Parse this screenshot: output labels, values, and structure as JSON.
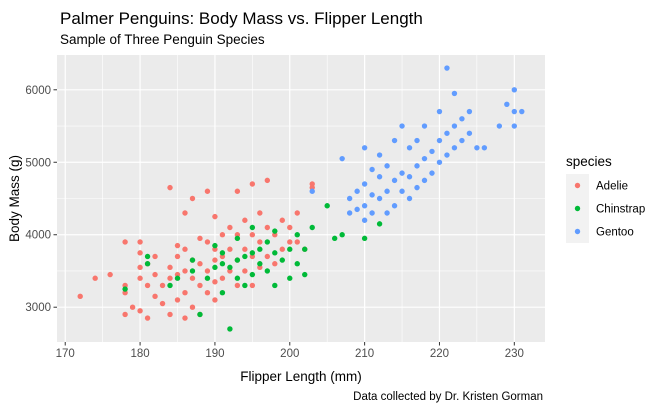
{
  "chart_data": {
    "type": "scatter",
    "title": "Palmer Penguins: Body Mass vs. Flipper Length",
    "subtitle": "Sample of Three Penguin Species",
    "xlabel": "Flipper Length (mm)",
    "ylabel": "Body Mass (g)",
    "caption": "Data collected by Dr. Kristen Gorman",
    "xlim": [
      168.9,
      234.1
    ],
    "ylim": [
      2520,
      6480
    ],
    "x_ticks": [
      170,
      180,
      190,
      200,
      210,
      220,
      230
    ],
    "y_ticks": [
      3000,
      4000,
      5000,
      6000
    ],
    "grid": true,
    "legend": {
      "title": "species",
      "position": "right"
    },
    "series": [
      {
        "name": "Adelie",
        "color": "#F8766D",
        "points": [
          [
            172,
            3150
          ],
          [
            174,
            3400
          ],
          [
            176,
            3450
          ],
          [
            178,
            2900
          ],
          [
            178,
            3200
          ],
          [
            178,
            3300
          ],
          [
            178,
            3900
          ],
          [
            179,
            3000
          ],
          [
            180,
            2950
          ],
          [
            180,
            3550
          ],
          [
            180,
            3750
          ],
          [
            180,
            3900
          ],
          [
            180,
            3400
          ],
          [
            181,
            2850
          ],
          [
            181,
            3300
          ],
          [
            181,
            3600
          ],
          [
            182,
            3150
          ],
          [
            182,
            3700
          ],
          [
            182,
            3450
          ],
          [
            183,
            3050
          ],
          [
            183,
            3300
          ],
          [
            184,
            2900
          ],
          [
            184,
            3400
          ],
          [
            184,
            3550
          ],
          [
            184,
            4650
          ],
          [
            185,
            3100
          ],
          [
            185,
            3700
          ],
          [
            185,
            3850
          ],
          [
            185,
            3450
          ],
          [
            186,
            2850
          ],
          [
            186,
            3200
          ],
          [
            186,
            3500
          ],
          [
            186,
            3800
          ],
          [
            186,
            4300
          ],
          [
            187,
            3000
          ],
          [
            187,
            3400
          ],
          [
            187,
            3650
          ],
          [
            187,
            4500
          ],
          [
            188,
            2900
          ],
          [
            188,
            3300
          ],
          [
            188,
            3600
          ],
          [
            188,
            3950
          ],
          [
            189,
            3200
          ],
          [
            189,
            3500
          ],
          [
            189,
            3900
          ],
          [
            189,
            4600
          ],
          [
            190,
            3100
          ],
          [
            190,
            3350
          ],
          [
            190,
            3650
          ],
          [
            190,
            3800
          ],
          [
            190,
            4250
          ],
          [
            191,
            3400
          ],
          [
            191,
            3700
          ],
          [
            191,
            4000
          ],
          [
            192,
            3500
          ],
          [
            192,
            3800
          ],
          [
            192,
            4100
          ],
          [
            193,
            3300
          ],
          [
            193,
            3650
          ],
          [
            193,
            4000
          ],
          [
            193,
            4600
          ],
          [
            194,
            3500
          ],
          [
            194,
            3800
          ],
          [
            194,
            4200
          ],
          [
            195,
            3300
          ],
          [
            195,
            3700
          ],
          [
            195,
            4000
          ],
          [
            195,
            4700
          ],
          [
            196,
            3550
          ],
          [
            196,
            3900
          ],
          [
            196,
            4300
          ],
          [
            197,
            3700
          ],
          [
            197,
            4100
          ],
          [
            197,
            4750
          ],
          [
            198,
            3600
          ],
          [
            198,
            4000
          ],
          [
            199,
            3800
          ],
          [
            199,
            4200
          ],
          [
            200,
            3900
          ],
          [
            200,
            4100
          ],
          [
            201,
            3900
          ],
          [
            201,
            4300
          ],
          [
            202,
            3800
          ],
          [
            203,
            4650
          ],
          [
            203,
            4700
          ]
        ]
      },
      {
        "name": "Chinstrap",
        "color": "#00BA38",
        "points": [
          [
            178,
            3250
          ],
          [
            181,
            3600
          ],
          [
            181,
            3700
          ],
          [
            184,
            3300
          ],
          [
            185,
            3400
          ],
          [
            187,
            3500
          ],
          [
            187,
            3650
          ],
          [
            188,
            2900
          ],
          [
            189,
            3400
          ],
          [
            190,
            3550
          ],
          [
            190,
            3850
          ],
          [
            191,
            3200
          ],
          [
            191,
            3600
          ],
          [
            191,
            3750
          ],
          [
            192,
            2700
          ],
          [
            192,
            3550
          ],
          [
            193,
            3400
          ],
          [
            193,
            3650
          ],
          [
            193,
            3950
          ],
          [
            194,
            3300
          ],
          [
            194,
            3700
          ],
          [
            195,
            3450
          ],
          [
            195,
            3750
          ],
          [
            195,
            4100
          ],
          [
            196,
            3600
          ],
          [
            196,
            3800
          ],
          [
            197,
            3500
          ],
          [
            197,
            3900
          ],
          [
            198,
            3300
          ],
          [
            198,
            3750
          ],
          [
            198,
            4050
          ],
          [
            199,
            3650
          ],
          [
            200,
            3400
          ],
          [
            200,
            3800
          ],
          [
            201,
            3600
          ],
          [
            201,
            4000
          ],
          [
            202,
            3450
          ],
          [
            202,
            3800
          ],
          [
            203,
            4100
          ],
          [
            205,
            4400
          ],
          [
            206,
            3950
          ],
          [
            207,
            4000
          ],
          [
            210,
            3950
          ],
          [
            212,
            4150
          ]
        ]
      },
      {
        "name": "Gentoo",
        "color": "#619CFF",
        "points": [
          [
            203,
            4600
          ],
          [
            207,
            5050
          ],
          [
            208,
            4300
          ],
          [
            208,
            4500
          ],
          [
            209,
            4350
          ],
          [
            209,
            4600
          ],
          [
            210,
            4200
          ],
          [
            210,
            4400
          ],
          [
            210,
            4700
          ],
          [
            210,
            5200
          ],
          [
            211,
            4300
          ],
          [
            211,
            4550
          ],
          [
            211,
            4900
          ],
          [
            212,
            4500
          ],
          [
            212,
            4800
          ],
          [
            212,
            5100
          ],
          [
            213,
            4300
          ],
          [
            213,
            4600
          ],
          [
            213,
            4950
          ],
          [
            214,
            4400
          ],
          [
            214,
            4750
          ],
          [
            214,
            5300
          ],
          [
            215,
            4600
          ],
          [
            215,
            4850
          ],
          [
            215,
            5500
          ],
          [
            216,
            4500
          ],
          [
            216,
            4800
          ],
          [
            216,
            5200
          ],
          [
            217,
            4650
          ],
          [
            217,
            4950
          ],
          [
            217,
            5300
          ],
          [
            218,
            4750
          ],
          [
            218,
            5050
          ],
          [
            218,
            5500
          ],
          [
            219,
            4850
          ],
          [
            219,
            5150
          ],
          [
            220,
            5000
          ],
          [
            220,
            5300
          ],
          [
            220,
            5700
          ],
          [
            221,
            5100
          ],
          [
            221,
            5400
          ],
          [
            221,
            6300
          ],
          [
            222,
            5200
          ],
          [
            222,
            5500
          ],
          [
            222,
            5950
          ],
          [
            223,
            5300
          ],
          [
            223,
            5600
          ],
          [
            224,
            5400
          ],
          [
            224,
            5700
          ],
          [
            225,
            5200
          ],
          [
            226,
            5200
          ],
          [
            228,
            5500
          ],
          [
            229,
            5800
          ],
          [
            230,
            5700
          ],
          [
            230,
            6000
          ],
          [
            230,
            5500
          ],
          [
            231,
            5700
          ]
        ]
      }
    ]
  }
}
